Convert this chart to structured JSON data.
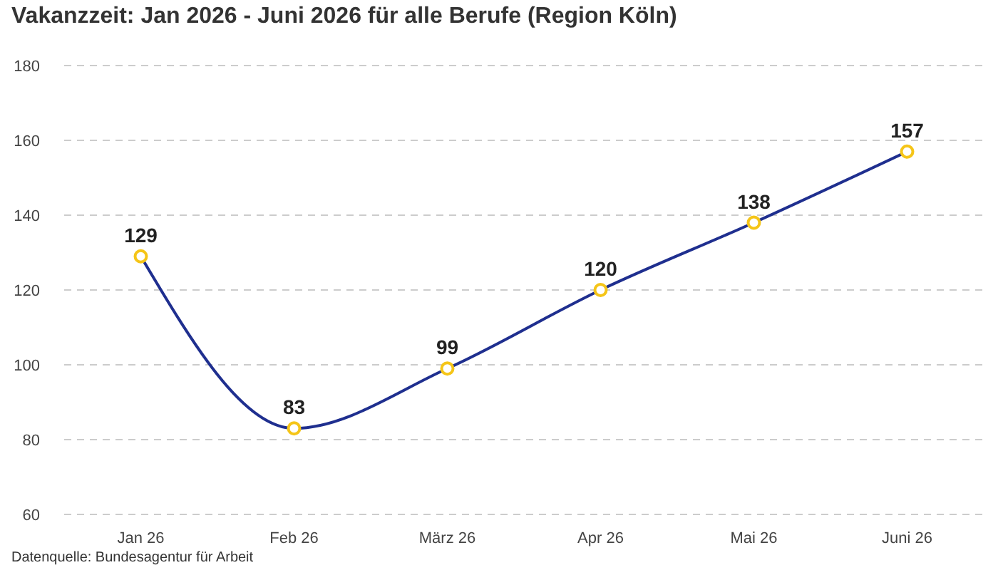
{
  "chart_data": {
    "type": "line",
    "title": "Vakanzzeit: Jan 2026 - Juni 2026 für alle Berufe (Region Köln)",
    "categories": [
      "Jan 26",
      "Feb 26",
      "März 26",
      "Apr 26",
      "Mai 26",
      "Juni 26"
    ],
    "series": [
      {
        "color": "#1f2f8f",
        "values": [
          129,
          83,
          99,
          120,
          138,
          157
        ]
      }
    ],
    "ylim": [
      60,
      180
    ],
    "yticks": [
      60,
      80,
      100,
      120,
      140,
      160,
      180
    ],
    "grid": "y",
    "marker": "circle",
    "data_labels": true,
    "annotations": [
      "Datenquelle: Bundesagentur für Arbeit"
    ]
  }
}
